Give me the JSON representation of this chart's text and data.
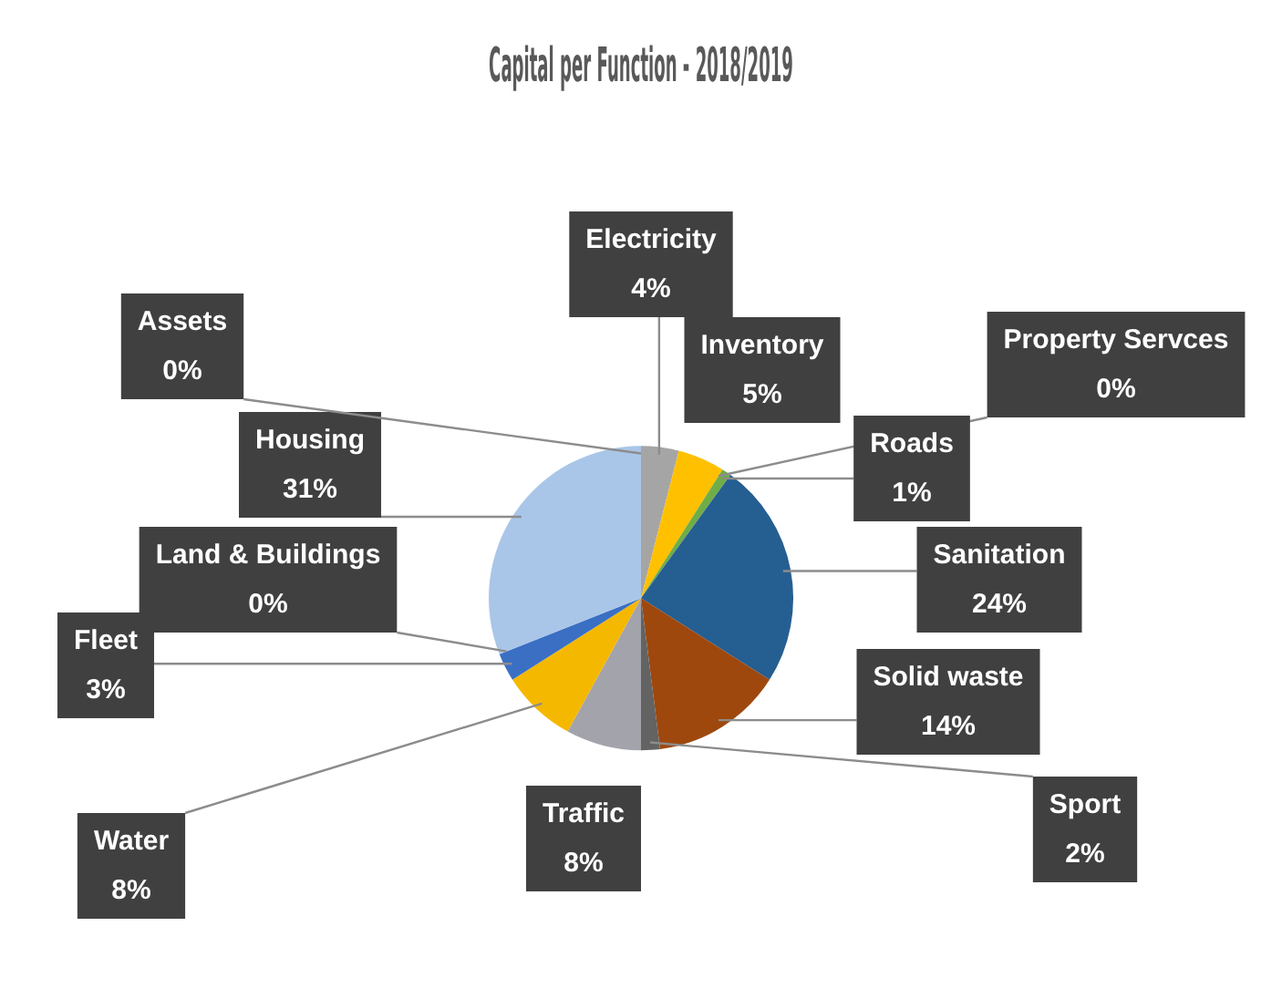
{
  "chart_data": {
    "type": "pie",
    "title": "Capital per Function - 2018/2019",
    "categories": [
      "Electricity",
      "Inventory",
      "Property Servces",
      "Roads",
      "Sanitation",
      "Solid waste",
      "Sport",
      "Traffic",
      "Water",
      "Fleet",
      "Land & Buildings",
      "Housing",
      "Assets"
    ],
    "values": [
      4,
      5,
      0,
      1,
      24,
      14,
      2,
      8,
      8,
      3,
      0,
      31,
      0
    ],
    "value_labels": [
      "4%",
      "5%",
      "0%",
      "1%",
      "24%",
      "14%",
      "2%",
      "8%",
      "8%",
      "3%",
      "0%",
      "31%",
      "0%"
    ],
    "colors": [
      "#a5a5a5",
      "#ffc000",
      "#5b9bd5",
      "#70ad47",
      "#255e91",
      "#9e480e",
      "#636363",
      "#a3a3ac",
      "#f5b800",
      "#3a6fc4",
      "#70ad47",
      "#a9c6e8",
      "#7f6084"
    ],
    "legend": false
  }
}
